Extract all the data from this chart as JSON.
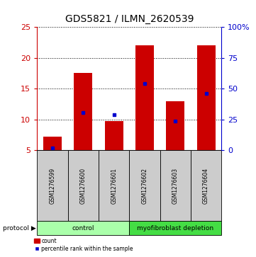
{
  "title": "GDS5821 / ILMN_2620539",
  "samples": [
    "GSM1276599",
    "GSM1276600",
    "GSM1276601",
    "GSM1276602",
    "GSM1276603",
    "GSM1276604"
  ],
  "counts": [
    7.2,
    17.5,
    9.7,
    22.0,
    13.0,
    22.0
  ],
  "percentiles": [
    5.4,
    11.1,
    10.8,
    15.8,
    9.8,
    14.2
  ],
  "baseline": 5.0,
  "ylim_left": [
    5,
    25
  ],
  "ylim_right": [
    0,
    100
  ],
  "yticks_left": [
    5,
    10,
    15,
    20,
    25
  ],
  "yticks_right": [
    0,
    25,
    50,
    75,
    100
  ],
  "bar_color": "#cc0000",
  "marker_color": "#0000cc",
  "bar_width": 0.6,
  "groups": [
    {
      "label": "control",
      "samples": [
        0,
        1,
        2
      ],
      "color": "#aaffaa"
    },
    {
      "label": "myofibroblast depletion",
      "samples": [
        3,
        4,
        5
      ],
      "color": "#44dd44"
    }
  ],
  "protocol_label": "protocol",
  "legend_count_label": "count",
  "legend_percentile_label": "percentile rank within the sample",
  "title_fontsize": 10,
  "axis_label_color_left": "#cc0000",
  "axis_label_color_right": "#0000cc",
  "background_color": "#ffffff",
  "plot_bg_color": "#ffffff",
  "sample_box_color": "#cccccc"
}
